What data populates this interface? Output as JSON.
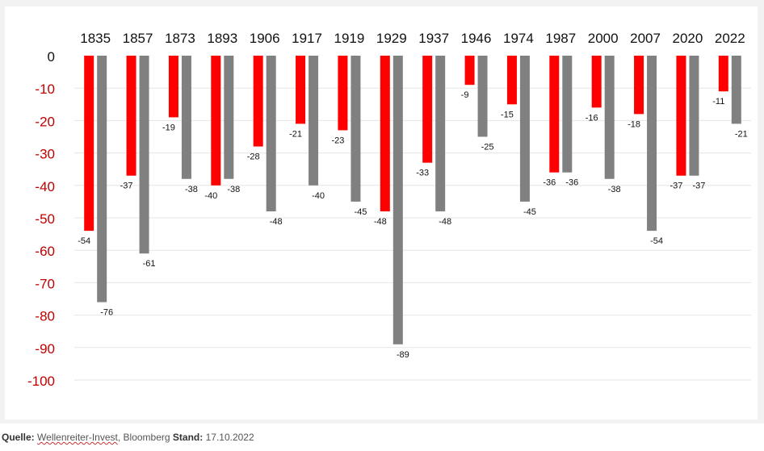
{
  "chart_data": {
    "type": "bar",
    "categories": [
      "1835",
      "1857",
      "1873",
      "1893",
      "1906",
      "1917",
      "1919",
      "1929",
      "1937",
      "1946",
      "1974",
      "1987",
      "2000",
      "2007",
      "2020",
      "2022"
    ],
    "series": [
      {
        "color": "#ff0000",
        "values": [
          -54,
          -37,
          -19,
          -40,
          -28,
          -21,
          -23,
          -48,
          -33,
          -9,
          -15,
          -36,
          -16,
          -18,
          -37,
          -11
        ]
      },
      {
        "color": "#808080",
        "values": [
          -76,
          -61,
          -38,
          -38,
          -48,
          -40,
          -45,
          -89,
          -48,
          -25,
          -45,
          -36,
          -38,
          -54,
          -37,
          -21
        ]
      }
    ],
    "yticks": [
      "0",
      "-10",
      "-20",
      "-30",
      "-40",
      "-50",
      "-60",
      "-70",
      "-80",
      "-90",
      "-100"
    ],
    "ylim": [
      -100,
      0
    ],
    "grid": true,
    "axis_label_color": "#c00000"
  },
  "footer": {
    "source_label": "Quelle:",
    "source_name": "Wellenreiter-Invest",
    "source_extra": ", Bloomberg",
    "stand_label": "Stand:",
    "stand_date": "17.10.2022"
  }
}
